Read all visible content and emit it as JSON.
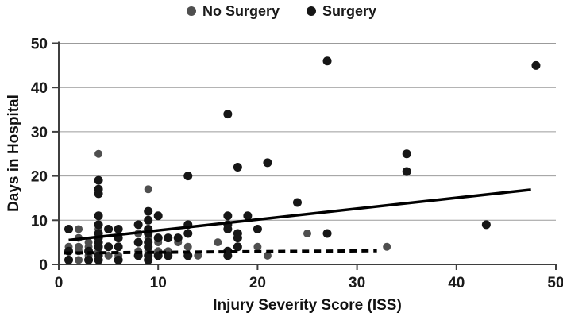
{
  "legend": {
    "items": [
      {
        "label": "No Surgery",
        "color": "#4f4f4f"
      },
      {
        "label": "Surgery",
        "color": "#161616"
      }
    ]
  },
  "chart_data": {
    "type": "scatter",
    "title": "",
    "xlabel": "Injury Severity Score (ISS)",
    "ylabel": "Days in Hospital",
    "xlim": [
      0,
      50
    ],
    "ylim": [
      0,
      50
    ],
    "x_ticks": [
      0,
      10,
      20,
      30,
      40,
      50
    ],
    "y_ticks": [
      0,
      10,
      20,
      30,
      40,
      50
    ],
    "grid": "horizontal-only",
    "legend_position": "top-center",
    "axis_color": "#3f3f3f",
    "gridline_color": "#9b9b9b",
    "series": [
      {
        "name": "No Surgery",
        "color": "#4f4f4f",
        "marker_radius": 5,
        "points": [
          [
            1,
            4
          ],
          [
            2,
            8
          ],
          [
            2,
            6
          ],
          [
            2,
            4
          ],
          [
            2,
            3
          ],
          [
            2,
            1
          ],
          [
            3,
            5
          ],
          [
            3,
            4
          ],
          [
            3,
            2
          ],
          [
            4,
            25
          ],
          [
            4,
            8
          ],
          [
            4,
            3
          ],
          [
            5,
            2
          ],
          [
            6,
            2
          ],
          [
            8,
            7
          ],
          [
            8,
            3
          ],
          [
            9,
            17
          ],
          [
            9,
            6
          ],
          [
            9,
            3
          ],
          [
            10,
            5
          ],
          [
            10,
            3
          ],
          [
            11,
            3
          ],
          [
            12,
            5
          ],
          [
            13,
            4
          ],
          [
            14,
            2
          ],
          [
            16,
            5
          ],
          [
            20,
            4
          ],
          [
            21,
            2
          ],
          [
            25,
            7
          ],
          [
            33,
            4
          ]
        ]
      },
      {
        "name": "Surgery",
        "color": "#161616",
        "marker_radius": 5.5,
        "points": [
          [
            1,
            8
          ],
          [
            1,
            3
          ],
          [
            1,
            1
          ],
          [
            3,
            3
          ],
          [
            3,
            1
          ],
          [
            4,
            19
          ],
          [
            4,
            17
          ],
          [
            4,
            16
          ],
          [
            4,
            11
          ],
          [
            4,
            9
          ],
          [
            4,
            7
          ],
          [
            4,
            6
          ],
          [
            4,
            5
          ],
          [
            4,
            4
          ],
          [
            4,
            2
          ],
          [
            4,
            1
          ],
          [
            5,
            8
          ],
          [
            5,
            4
          ],
          [
            6,
            8
          ],
          [
            6,
            6
          ],
          [
            6,
            4
          ],
          [
            6,
            1
          ],
          [
            8,
            9
          ],
          [
            8,
            5
          ],
          [
            8,
            2
          ],
          [
            9,
            12
          ],
          [
            9,
            10
          ],
          [
            9,
            8
          ],
          [
            9,
            7
          ],
          [
            9,
            5
          ],
          [
            9,
            4
          ],
          [
            9,
            2
          ],
          [
            9,
            1
          ],
          [
            10,
            11
          ],
          [
            10,
            6
          ],
          [
            10,
            2
          ],
          [
            11,
            6
          ],
          [
            11,
            2
          ],
          [
            12,
            6
          ],
          [
            13,
            20
          ],
          [
            13,
            9
          ],
          [
            13,
            7
          ],
          [
            13,
            2
          ],
          [
            17,
            34
          ],
          [
            17,
            11
          ],
          [
            17,
            9
          ],
          [
            17,
            8
          ],
          [
            17,
            3
          ],
          [
            17,
            2
          ],
          [
            18,
            22
          ],
          [
            18,
            7
          ],
          [
            18,
            6
          ],
          [
            18,
            4
          ],
          [
            19,
            11
          ],
          [
            20,
            8
          ],
          [
            21,
            23
          ],
          [
            24,
            14
          ],
          [
            27,
            46
          ],
          [
            27,
            7
          ],
          [
            35,
            25
          ],
          [
            35,
            21
          ],
          [
            43,
            9
          ],
          [
            48,
            45
          ]
        ]
      }
    ],
    "trendlines": [
      {
        "series": "Surgery",
        "style": "solid",
        "color": "#000000",
        "width": 3.5,
        "from": [
          1,
          5.5
        ],
        "to": [
          47.5,
          16.9
        ]
      },
      {
        "series": "No Surgery",
        "style": "dashed",
        "color": "#000000",
        "width": 4,
        "from": [
          0.5,
          2.6
        ],
        "to": [
          32,
          3.1
        ]
      }
    ]
  }
}
